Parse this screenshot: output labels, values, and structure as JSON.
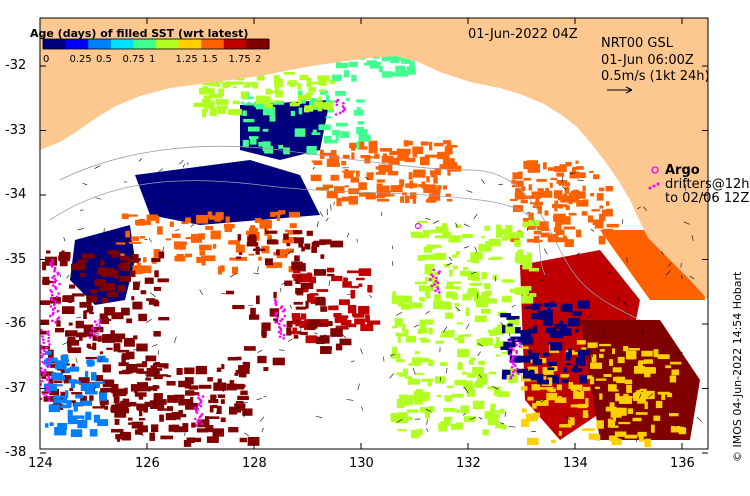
{
  "map": {
    "date_title": "01-Jun-2022 04Z",
    "product": "NRT00 GSL",
    "current_time": "01-Jun 06:00Z",
    "vector_scale": "0.5m/s (1kt 24h)",
    "credit": "© IMOS 04-Jun-2022 14:54 Hobart",
    "x_ticks": [
      "124",
      "126",
      "128",
      "130",
      "132",
      "134",
      "136"
    ],
    "y_ticks": [
      "-32",
      "-33",
      "-34",
      "-35",
      "-36",
      "-37",
      "-38"
    ]
  },
  "colorbar": {
    "title": "Age (days) of filled SST (wrt latest)",
    "ticks": [
      "0",
      "0.25",
      "0.5",
      "0.75",
      "1",
      "1.25",
      "1.5",
      "1.75",
      "2"
    ],
    "colors": [
      "#00007f",
      "#0000ff",
      "#0080ff",
      "#00e0ff",
      "#40ff90",
      "#b0ff20",
      "#ffd000",
      "#ff6000",
      "#c00000",
      "#800000"
    ]
  },
  "legend": {
    "argo_label": "Argo",
    "drifter_label": "drifters@12h",
    "drifter_sub": "to 02/06 12Z",
    "argo_color": "#ff00ff",
    "drifter_color": "#ff00ff"
  },
  "colors": {
    "land": "#fdc890",
    "frame": "#000000"
  }
}
